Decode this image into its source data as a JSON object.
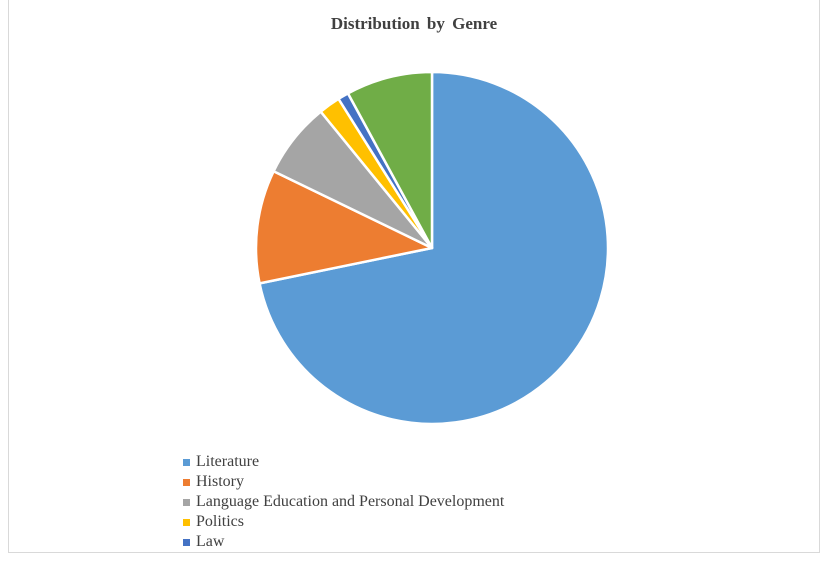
{
  "chart_data": {
    "type": "pie",
    "title": "Distribution  by Genre",
    "categories": [
      "Literature",
      "History",
      "Language Education and Personal Development",
      "Politics",
      "Law",
      ""
    ],
    "values": [
      72.5,
      10.5,
      7,
      2,
      1,
      8
    ],
    "colors": [
      "#5b9bd5",
      "#ed7d31",
      "#a5a5a5",
      "#ffc000",
      "#4472c4",
      "#70ad47"
    ],
    "start_angle_deg": 0,
    "direction": "clockwise",
    "legend_position": "bottom-left",
    "legend": [
      {
        "label": "Literature",
        "color": "#5b9bd5"
      },
      {
        "label": "History",
        "color": "#ed7d31"
      },
      {
        "label": "Language Education and Personal Development",
        "color": "#a5a5a5"
      },
      {
        "label": "Politics",
        "color": "#ffc000"
      },
      {
        "label": "Law",
        "color": "#4472c4"
      }
    ]
  }
}
